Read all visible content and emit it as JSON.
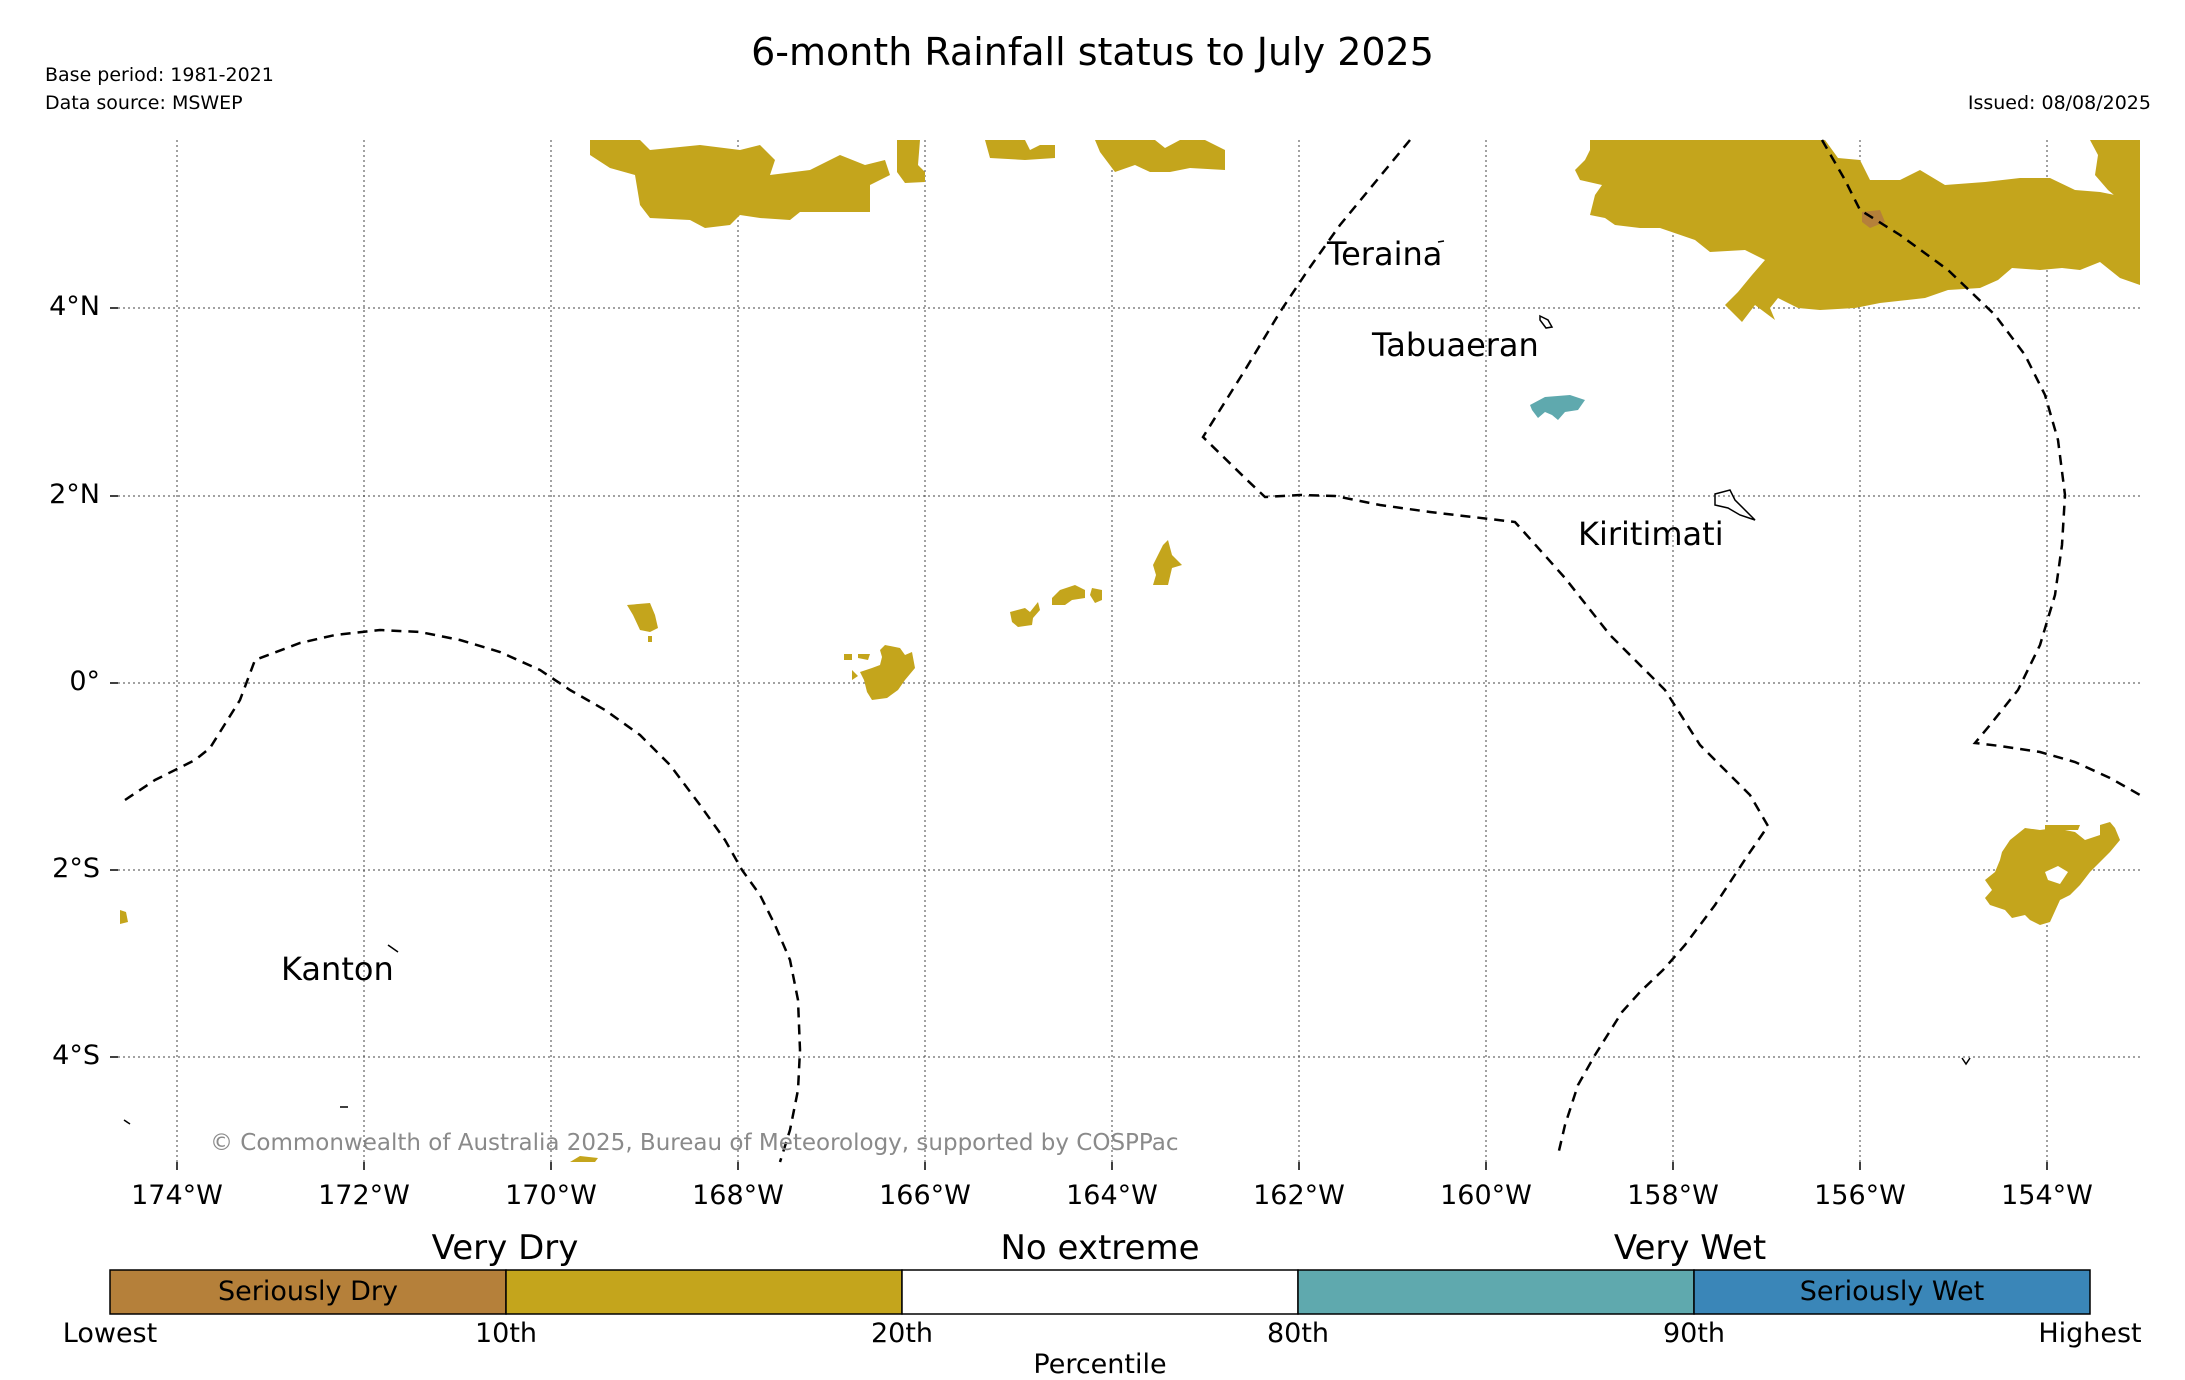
{
  "title": "6-month Rainfall status to July 2025",
  "base_period": "Base period: 1981-2021",
  "data_source": "Data source: MSWEP",
  "issued": "Issued: 08/08/2025",
  "copyright": "© Commonwealth of Australia 2025, Bureau of Meteorology, supported by COSPPac",
  "lon_ticks": [
    "174°W",
    "172°W",
    "170°W",
    "168°W",
    "166°W",
    "164°W",
    "162°W",
    "160°W",
    "158°W",
    "156°W",
    "154°W"
  ],
  "lat_ticks": [
    "4°N",
    "2°N",
    "0°",
    "2°S",
    "4°S"
  ],
  "places": {
    "teraina": "Teraina",
    "tabuaeran": "Tabuaeran",
    "kiritimati": "Kiritimati",
    "kanton": "Kanton"
  },
  "legend": {
    "very_dry": "Very Dry",
    "no_extreme": "No extreme",
    "very_wet": "Very Wet",
    "seriously_dry": "Seriously Dry",
    "seriously_wet": "Seriously Wet",
    "ticks": [
      "Lowest",
      "10th",
      "20th",
      "80th",
      "90th",
      "Highest"
    ],
    "xlabel": "Percentile",
    "colors": {
      "seriously_dry": "#b5803a",
      "very_dry": "#c4a51c",
      "no_extreme": "#ffffff",
      "very_wet": "#5fa9ae",
      "seriously_wet": "#3a86b8"
    }
  }
}
